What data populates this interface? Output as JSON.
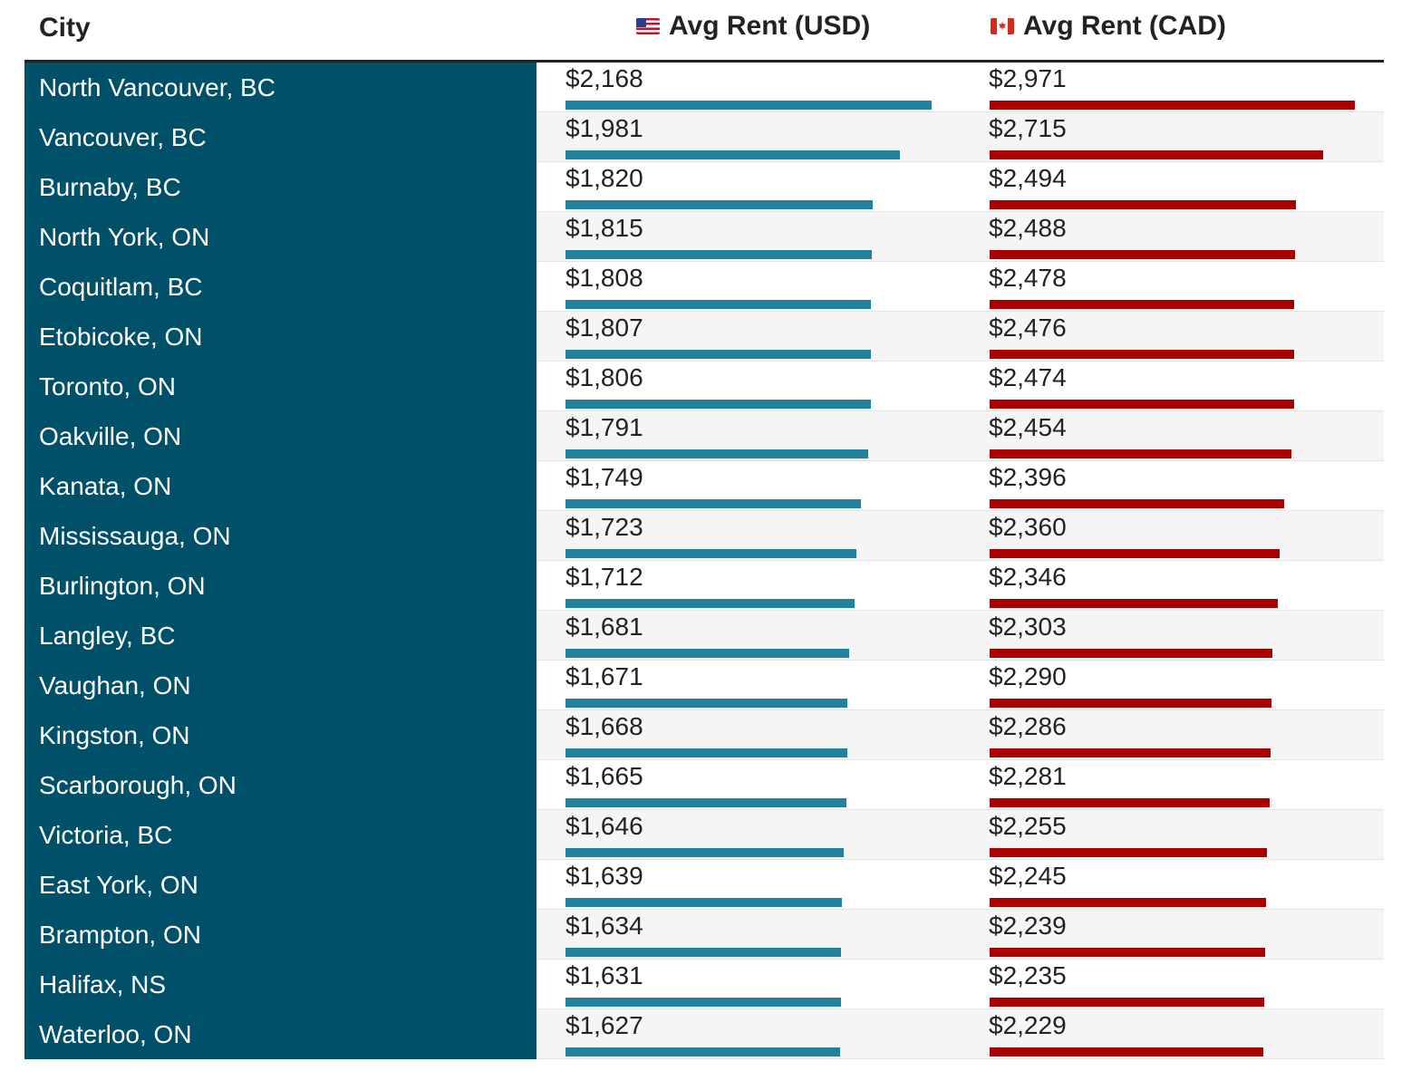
{
  "header": {
    "city": "City",
    "usd": "Avg Rent (USD)",
    "cad": "Avg Rent (CAD)",
    "usd_flag_icon": "us-flag",
    "cad_flag_icon": "canada-flag"
  },
  "colors": {
    "city_column": "#005069",
    "usd_bar": "#2381a0",
    "cad_bar": "#aa0000",
    "alt_row": "#f5f5f5"
  },
  "chart_data": {
    "type": "table",
    "columns": [
      "City",
      "Avg Rent (USD)",
      "Avg Rent (CAD)"
    ],
    "rows": [
      {
        "city": "North Vancouver, BC",
        "usd": 2168,
        "usd_label": "$2,168",
        "cad": 2971,
        "cad_label": "$2,971"
      },
      {
        "city": "Vancouver, BC",
        "usd": 1981,
        "usd_label": "$1,981",
        "cad": 2715,
        "cad_label": "$2,715"
      },
      {
        "city": "Burnaby, BC",
        "usd": 1820,
        "usd_label": "$1,820",
        "cad": 2494,
        "cad_label": "$2,494"
      },
      {
        "city": "North York, ON",
        "usd": 1815,
        "usd_label": "$1,815",
        "cad": 2488,
        "cad_label": "$2,488"
      },
      {
        "city": "Coquitlam, BC",
        "usd": 1808,
        "usd_label": "$1,808",
        "cad": 2478,
        "cad_label": "$2,478"
      },
      {
        "city": "Etobicoke, ON",
        "usd": 1807,
        "usd_label": "$1,807",
        "cad": 2476,
        "cad_label": "$2,476"
      },
      {
        "city": "Toronto, ON",
        "usd": 1806,
        "usd_label": "$1,806",
        "cad": 2474,
        "cad_label": "$2,474"
      },
      {
        "city": "Oakville, ON",
        "usd": 1791,
        "usd_label": "$1,791",
        "cad": 2454,
        "cad_label": "$2,454"
      },
      {
        "city": "Kanata, ON",
        "usd": 1749,
        "usd_label": "$1,749",
        "cad": 2396,
        "cad_label": "$2,396"
      },
      {
        "city": "Mississauga, ON",
        "usd": 1723,
        "usd_label": "$1,723",
        "cad": 2360,
        "cad_label": "$2,360"
      },
      {
        "city": "Burlington, ON",
        "usd": 1712,
        "usd_label": "$1,712",
        "cad": 2346,
        "cad_label": "$2,346"
      },
      {
        "city": "Langley, BC",
        "usd": 1681,
        "usd_label": "$1,681",
        "cad": 2303,
        "cad_label": "$2,303"
      },
      {
        "city": "Vaughan, ON",
        "usd": 1671,
        "usd_label": "$1,671",
        "cad": 2290,
        "cad_label": "$2,290"
      },
      {
        "city": "Kingston, ON",
        "usd": 1668,
        "usd_label": "$1,668",
        "cad": 2286,
        "cad_label": "$2,286"
      },
      {
        "city": "Scarborough, ON",
        "usd": 1665,
        "usd_label": "$1,665",
        "cad": 2281,
        "cad_label": "$2,281"
      },
      {
        "city": "Victoria, BC",
        "usd": 1646,
        "usd_label": "$1,646",
        "cad": 2255,
        "cad_label": "$2,255"
      },
      {
        "city": "East York, ON",
        "usd": 1639,
        "usd_label": "$1,639",
        "cad": 2245,
        "cad_label": "$2,245"
      },
      {
        "city": "Brampton, ON",
        "usd": 1634,
        "usd_label": "$1,634",
        "cad": 2239,
        "cad_label": "$2,239"
      },
      {
        "city": "Halifax, NS",
        "usd": 1631,
        "usd_label": "$1,631",
        "cad": 2235,
        "cad_label": "$2,235"
      },
      {
        "city": "Waterloo, ON",
        "usd": 1627,
        "usd_label": "$1,627",
        "cad": 2229,
        "cad_label": "$2,229"
      }
    ],
    "xlim": [
      0,
      2971
    ]
  }
}
